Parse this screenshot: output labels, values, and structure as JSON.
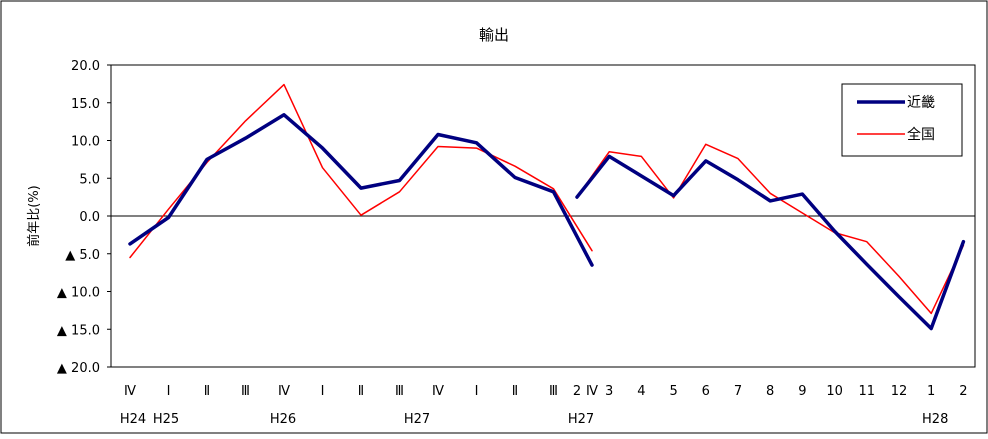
{
  "chart_data": {
    "type": "line",
    "title": "輸出",
    "ylabel": "前年比(%)",
    "ylim": [
      -20,
      20
    ],
    "y_ticks": [
      {
        "value": 20,
        "label": "20.0"
      },
      {
        "value": 15,
        "label": "15.0"
      },
      {
        "value": 10,
        "label": "10.0"
      },
      {
        "value": 5,
        "label": "5.0"
      },
      {
        "value": 0,
        "label": "0.0"
      },
      {
        "value": -5,
        "label": "▲ 5.0"
      },
      {
        "value": -10,
        "label": "▲ 10.0"
      },
      {
        "value": -15,
        "label": "▲ 15.0"
      },
      {
        "value": -20,
        "label": "▲ 20.0"
      }
    ],
    "grid": false,
    "legend": {
      "position": "top-right",
      "entries": [
        {
          "name": "近畿",
          "color": "#000080"
        },
        {
          "name": "全国",
          "color": "#ff0000"
        }
      ]
    },
    "quarterly": {
      "categories": [
        "Ⅳ",
        "Ⅰ",
        "Ⅱ",
        "Ⅲ",
        "Ⅳ",
        "Ⅰ",
        "Ⅱ",
        "Ⅲ",
        "Ⅳ",
        "Ⅰ",
        "Ⅱ",
        "Ⅲ",
        "Ⅳ"
      ],
      "era_labels": [
        {
          "index": 0,
          "label": "H24"
        },
        {
          "index": 1,
          "label": "H25"
        },
        {
          "index": 5,
          "label": "H26"
        },
        {
          "index": 9,
          "label": "H27"
        }
      ],
      "series": [
        {
          "name": "近畿",
          "values": [
            -3.7,
            -0.2,
            7.5,
            10.3,
            13.4,
            9.0,
            3.7,
            4.7,
            10.8,
            9.7,
            5.1,
            3.2,
            -6.5
          ]
        },
        {
          "name": "全国",
          "values": [
            -5.5,
            0.9,
            7.1,
            12.6,
            17.4,
            6.4,
            0.1,
            3.2,
            9.2,
            9.0,
            6.6,
            3.6,
            -4.6
          ]
        }
      ]
    },
    "monthly": {
      "categories": [
        "2",
        "3",
        "4",
        "5",
        "6",
        "7",
        "8",
        "9",
        "10",
        "11",
        "12",
        "1",
        "2"
      ],
      "era_labels": [
        {
          "index": 0,
          "label": "H27"
        },
        {
          "index": 11,
          "label": "H28"
        }
      ],
      "series": [
        {
          "name": "近畿",
          "values": [
            2.5,
            7.9,
            5.3,
            2.7,
            7.3,
            4.8,
            2.0,
            2.9,
            -2.0,
            -6.4,
            -10.7,
            -14.9,
            -3.4
          ]
        },
        {
          "name": "全国",
          "values": [
            2.5,
            8.5,
            7.9,
            2.4,
            9.5,
            7.6,
            3.0,
            0.4,
            -2.2,
            -3.4,
            -8.0,
            -12.9,
            -3.9
          ]
        }
      ]
    }
  }
}
